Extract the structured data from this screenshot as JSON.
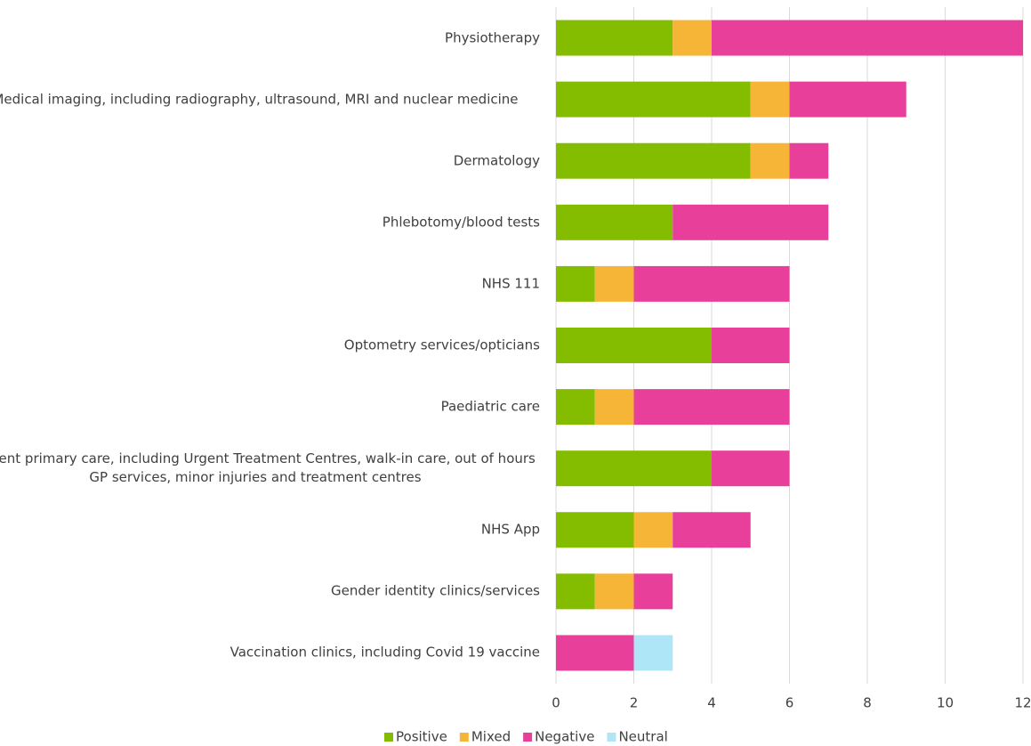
{
  "chart_data": {
    "type": "stacked-barh",
    "categories": [
      "Physiotherapy",
      "Medical imaging, including radiography, ultrasound, MRI and nuclear medicine",
      "Dermatology",
      "Phlebotomy/blood tests",
      "NHS 111",
      "Optometry services/opticians",
      "Paediatric care",
      "Urgent primary care, including Urgent Treatment Centres, walk-in care, out of hours GP services, minor injuries and treatment centres",
      "NHS App",
      "Gender identity clinics/services",
      "Vaccination clinics, including Covid 19 vaccine"
    ],
    "series": [
      {
        "name": "Positive",
        "color": "#84bd00",
        "values": [
          3,
          5,
          5,
          3,
          1,
          4,
          1,
          4,
          2,
          1,
          0
        ]
      },
      {
        "name": "Mixed",
        "color": "#f7b538",
        "values": [
          1,
          1,
          1,
          0,
          1,
          0,
          1,
          0,
          1,
          1,
          0
        ]
      },
      {
        "name": "Negative",
        "color": "#e8409a",
        "values": [
          8,
          3,
          1,
          4,
          4,
          2,
          4,
          2,
          2,
          1,
          2
        ]
      },
      {
        "name": "Neutral",
        "color": "#aee6f7",
        "values": [
          0,
          0,
          0,
          0,
          0,
          0,
          0,
          0,
          0,
          0,
          1
        ]
      }
    ],
    "xlim": [
      0,
      12
    ],
    "xticks": [
      0,
      2,
      4,
      6,
      8,
      10,
      12
    ],
    "grid": true,
    "legend": "bottom"
  }
}
